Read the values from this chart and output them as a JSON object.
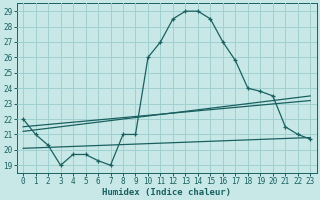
{
  "xlabel": "Humidex (Indice chaleur)",
  "bg_color": "#c8e8e8",
  "grid_color": "#a0d0d0",
  "line_color": "#1a6060",
  "xlim": [
    -0.5,
    23.5
  ],
  "ylim": [
    18.5,
    29.5
  ],
  "xticks": [
    0,
    1,
    2,
    3,
    4,
    5,
    6,
    7,
    8,
    9,
    10,
    11,
    12,
    13,
    14,
    15,
    16,
    17,
    18,
    19,
    20,
    21,
    22,
    23
  ],
  "yticks": [
    19,
    20,
    21,
    22,
    23,
    24,
    25,
    26,
    27,
    28,
    29
  ],
  "series1_x": [
    0,
    1,
    2,
    3,
    4,
    5,
    6,
    7,
    8,
    9,
    10,
    11,
    12,
    13,
    14,
    15,
    16,
    17,
    18,
    19,
    20,
    21,
    22,
    23
  ],
  "series1_y": [
    22,
    21,
    20.3,
    19,
    19.7,
    19.7,
    19.3,
    19,
    21,
    21,
    26,
    27,
    28.5,
    29,
    29,
    28.5,
    27,
    25.8,
    24,
    23.8,
    23.5,
    21.5,
    21,
    20.7
  ],
  "series2_x": [
    0,
    23
  ],
  "series2_y": [
    21.2,
    23.5
  ],
  "series3_x": [
    0,
    23
  ],
  "series3_y": [
    21.5,
    23.2
  ],
  "series4_x": [
    0,
    23
  ],
  "series4_y": [
    20.1,
    20.8
  ],
  "tick_fontsize": 5.5,
  "xlabel_fontsize": 6.5
}
